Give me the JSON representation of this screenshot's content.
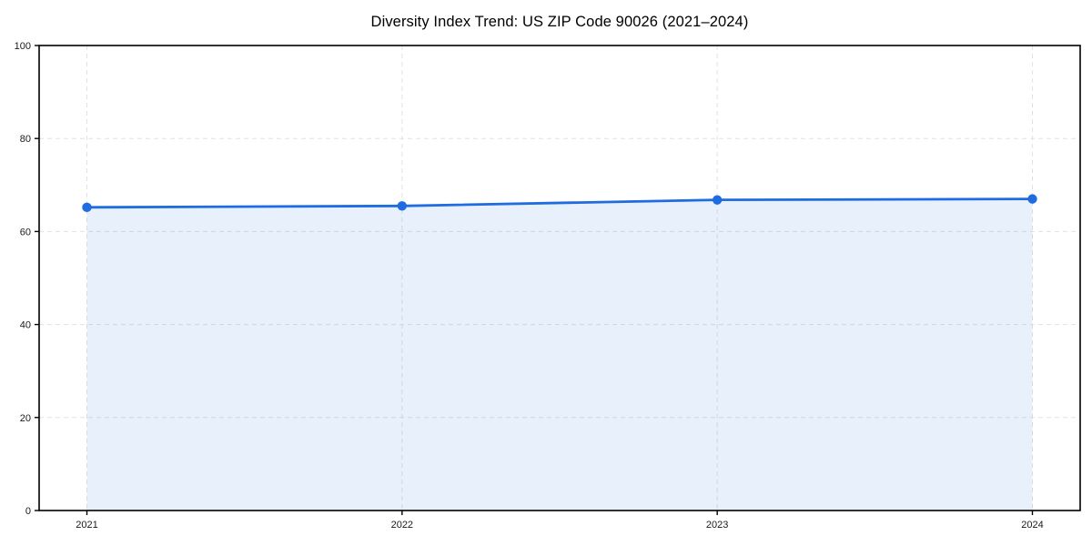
{
  "chart_data": {
    "type": "line",
    "title": "Diversity Index Trend: US ZIP Code 90026 (2021–2024)",
    "categories": [
      "2021",
      "2022",
      "2023",
      "2024"
    ],
    "series": [
      {
        "name": "Diversity Index",
        "values": [
          65.2,
          65.5,
          66.8,
          67.0
        ]
      }
    ],
    "xlabel": "",
    "ylabel": "",
    "ylim": [
      0,
      100
    ],
    "yticks": [
      0,
      20,
      40,
      60,
      80,
      100
    ],
    "grid": "dashed-both",
    "legend_position": "none",
    "area_fill": true,
    "colors": {
      "line": "#1f6be0",
      "marker": "#1f6be0",
      "fill": "rgba(31,107,224,0.10)",
      "grid": "#e2e2e2",
      "spine": "#000000",
      "tick_label": "#1a1a1a",
      "background": "#ffffff"
    }
  }
}
